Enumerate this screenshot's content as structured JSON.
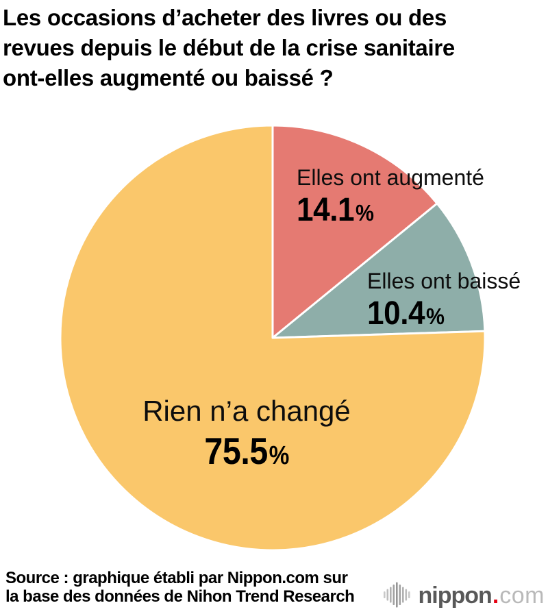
{
  "title": {
    "lines": [
      "Les occasions d’acheter des livres ou des",
      "revues depuis le début de la crise sanitaire",
      "ont-elles augmenté ou baissé ?"
    ]
  },
  "chart_data": {
    "type": "pie",
    "title": "Les occasions d’acheter des livres ou des revues depuis le début de la crise sanitaire ont-elles augmenté ou baissé ?",
    "unit": "%",
    "start_angle_deg": 0,
    "direction": "clockwise",
    "legend": "none",
    "labels_on_chart": true,
    "segments": [
      {
        "label": "Elles ont augmenté",
        "value": 14.1,
        "color": "#e57a72"
      },
      {
        "label": "Elles ont baissé",
        "value": 10.4,
        "color": "#8eaea9"
      },
      {
        "label": "Rien n’a changé",
        "value": 75.5,
        "color": "#fac76b"
      }
    ],
    "slice_divider_color": "#ffffff"
  },
  "source": {
    "lines": [
      "Source : graphique établi par Nippon.com sur",
      "la base des données de Nihon Trend Research"
    ]
  },
  "brand": {
    "name": "nippon",
    "dot": ".",
    "tld": "com",
    "name_color": "#595959",
    "dot_color": "#e60012",
    "tld_color": "#b9b9b9",
    "icon_color": "#ababab"
  }
}
